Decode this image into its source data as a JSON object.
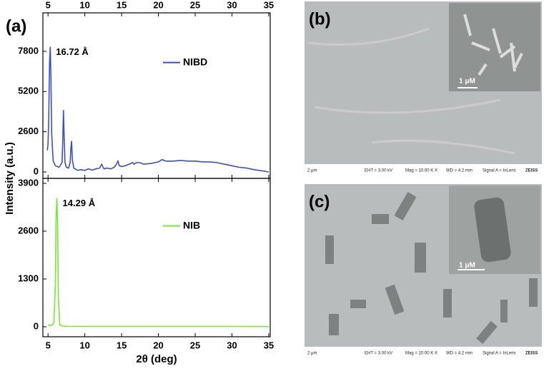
{
  "chart_data": [
    {
      "type": "line",
      "panel_label": "(a)",
      "y_label": "Intensity (a.u.)",
      "annotation": "16.72 Å",
      "xaxis_position": "top",
      "x": [
        4.9,
        5.0,
        5.1,
        5.2,
        5.3,
        5.4,
        5.5,
        5.7,
        6.0,
        6.5,
        6.9,
        7.0,
        7.1,
        7.2,
        7.3,
        7.5,
        7.8,
        8.0,
        8.1,
        8.2,
        8.3,
        8.5,
        9,
        9.5,
        10,
        10.5,
        11,
        11.5,
        12,
        12.3,
        12.6,
        13,
        13.5,
        14,
        14.3,
        14.5,
        14.7,
        15,
        15.5,
        16,
        16.5,
        16.7,
        17,
        17.5,
        18,
        19,
        20,
        20.5,
        21,
        22,
        23,
        24,
        25,
        26,
        27,
        28,
        29,
        30,
        31,
        32,
        33,
        34,
        35
      ],
      "series": [
        {
          "name": "NIBD",
          "color": "#3b4fc4",
          "values": [
            1400,
            1800,
            3500,
            7000,
            8100,
            6000,
            2500,
            700,
            400,
            300,
            600,
            2000,
            4000,
            2200,
            600,
            300,
            250,
            600,
            1500,
            2000,
            800,
            250,
            100,
            150,
            100,
            200,
            120,
            200,
            250,
            500,
            200,
            250,
            200,
            300,
            500,
            700,
            400,
            350,
            400,
            500,
            600,
            500,
            600,
            600,
            500,
            550,
            650,
            800,
            700,
            700,
            750,
            700,
            700,
            650,
            650,
            600,
            500,
            400,
            300,
            250,
            150,
            80,
            0
          ]
        }
      ],
      "xlim": [
        4.3,
        35.2
      ],
      "xticks": [
        5,
        10,
        15,
        20,
        25,
        30,
        35
      ],
      "ylim": [
        -415,
        10290
      ],
      "yticks": [
        0,
        2600,
        5200,
        7800
      ]
    },
    {
      "type": "line",
      "x_label": "2θ (deg)",
      "annotation": "14.29 Å",
      "xaxis_position": "bottom",
      "x": [
        5,
        5.5,
        5.8,
        6.0,
        6.1,
        6.2,
        6.3,
        6.4,
        6.6,
        7,
        8,
        10,
        15,
        20,
        25,
        30,
        35
      ],
      "series": [
        {
          "name": "NIB",
          "color": "#7de33a",
          "values": [
            40,
            40,
            100,
            1200,
            3000,
            3500,
            2800,
            800,
            50,
            20,
            10,
            10,
            10,
            10,
            10,
            10,
            5
          ]
        }
      ],
      "xlim": [
        4.3,
        35.2
      ],
      "xticks": [
        5,
        10,
        15,
        20,
        25,
        30,
        35
      ],
      "ylim": [
        -272,
        4036
      ],
      "yticks": [
        0,
        1300,
        2600,
        3900
      ]
    }
  ],
  "images": [
    {
      "label": "(b)",
      "inset_scale": "1 μM",
      "footer": [
        "2 μm",
        "EHT = 3.00 kV",
        "Mag = 10.00 K X",
        "WD = 4.2 mm",
        "Signal A = InLens",
        "ZEISS"
      ]
    },
    {
      "label": "(c)",
      "inset_scale": "1 μM",
      "footer": [
        "2 μm",
        "EHT = 3.00 kV",
        "Mag = 10.00 K X",
        "WD = 4.2 mm",
        "Signal A = InLens",
        "ZEISS"
      ]
    }
  ]
}
